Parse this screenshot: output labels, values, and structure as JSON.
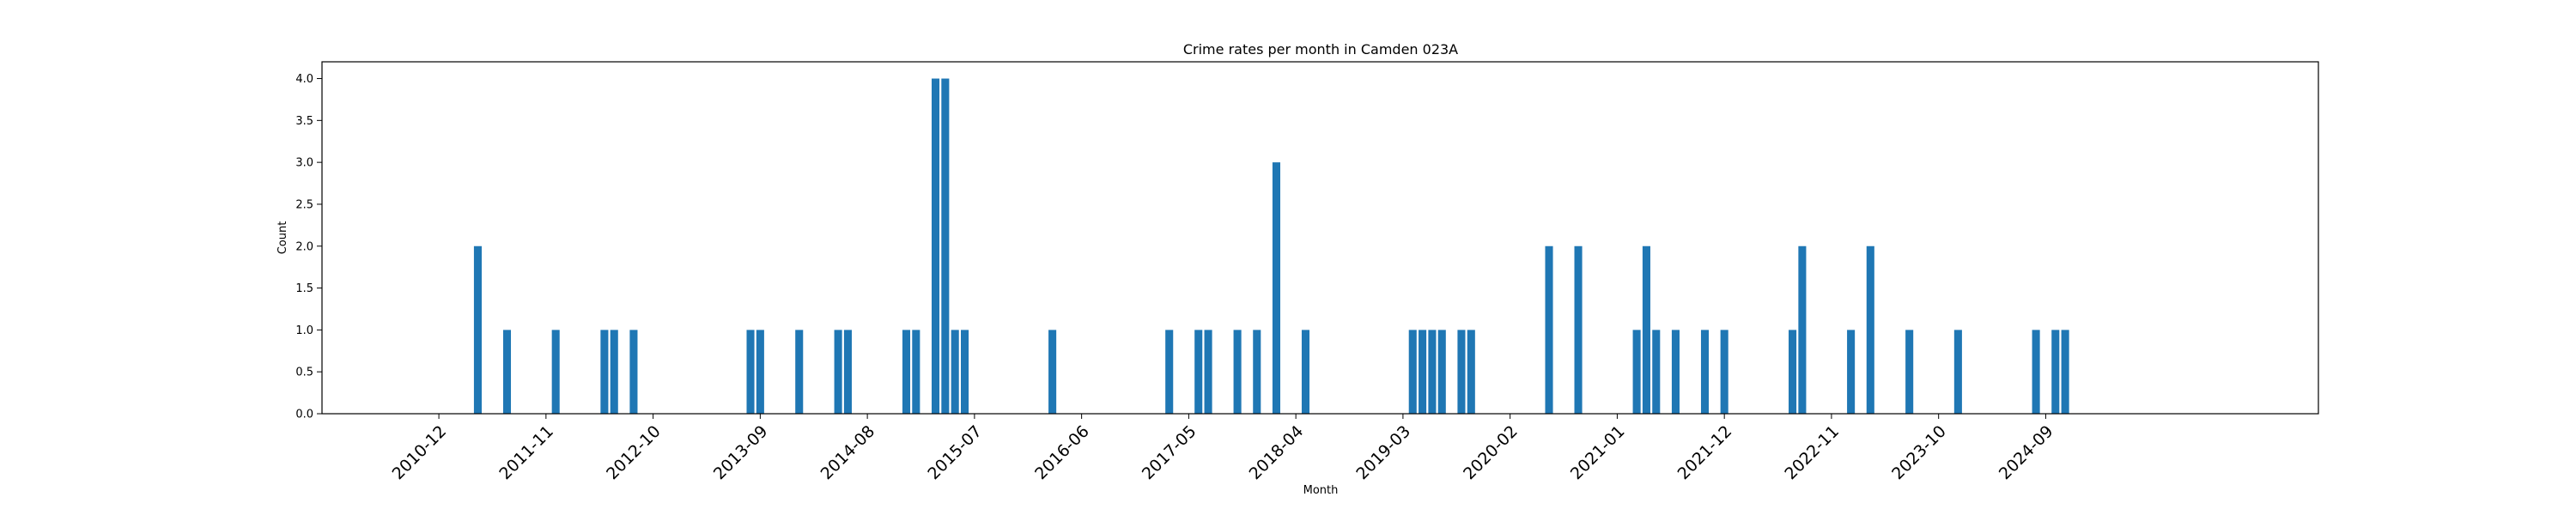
{
  "chart_data": {
    "type": "bar",
    "title": "Crime rates per month in Camden 023A",
    "xlabel": "Month",
    "ylabel": "Count",
    "ylim": [
      0,
      4.2
    ],
    "yticks": [
      0.0,
      0.5,
      1.0,
      1.5,
      2.0,
      2.5,
      3.0,
      3.5,
      4.0
    ],
    "ytick_labels": [
      "0.0",
      "0.5",
      "1.0",
      "1.5",
      "2.0",
      "2.5",
      "3.0",
      "3.5",
      "4.0"
    ],
    "xlim": [
      "2009-12",
      "2027-01"
    ],
    "xtick_labels": [
      "2010-12",
      "2011-11",
      "2012-10",
      "2013-09",
      "2014-08",
      "2015-07",
      "2016-06",
      "2017-05",
      "2018-04",
      "2019-03",
      "2020-02",
      "2021-01",
      "2021-12",
      "2022-11",
      "2023-10",
      "2024-09"
    ],
    "bar_color": "#1f77b4",
    "x": [
      "2011-04",
      "2011-07",
      "2011-12",
      "2012-05",
      "2012-06",
      "2012-08",
      "2013-08",
      "2013-09",
      "2014-01",
      "2014-05",
      "2014-06",
      "2014-12",
      "2015-01",
      "2015-03",
      "2015-04",
      "2015-05",
      "2015-06",
      "2016-03",
      "2017-03",
      "2017-06",
      "2017-07",
      "2017-10",
      "2017-12",
      "2018-02",
      "2018-05",
      "2019-04",
      "2019-05",
      "2019-06",
      "2019-07",
      "2019-09",
      "2019-10",
      "2020-06",
      "2020-09",
      "2021-03",
      "2021-04",
      "2021-05",
      "2021-07",
      "2021-10",
      "2021-12",
      "2022-07",
      "2022-08",
      "2023-01",
      "2023-03",
      "2023-07",
      "2023-12",
      "2024-08",
      "2024-10",
      "2024-11"
    ],
    "values": [
      2,
      1,
      1,
      1,
      1,
      1,
      1,
      1,
      1,
      1,
      1,
      1,
      1,
      4,
      4,
      1,
      1,
      1,
      1,
      1,
      1,
      1,
      1,
      3,
      1,
      1,
      1,
      1,
      1,
      1,
      1,
      2,
      2,
      1,
      2,
      1,
      1,
      1,
      1,
      1,
      2,
      1,
      2,
      1,
      1,
      1,
      1,
      1
    ]
  }
}
